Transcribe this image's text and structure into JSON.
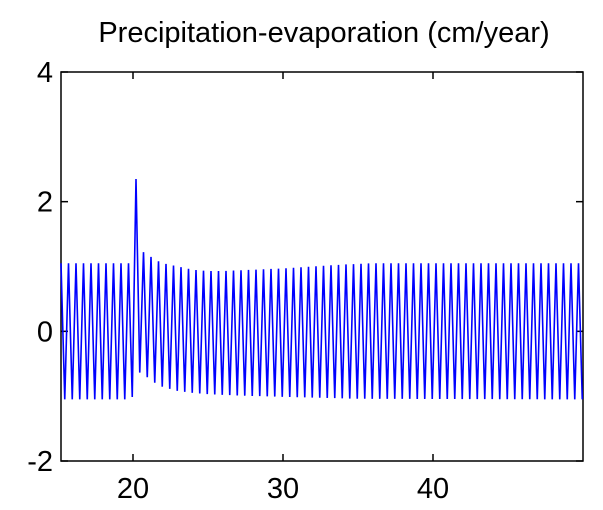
{
  "chart_data": {
    "type": "line",
    "title": "Precipitation-evaporation (cm/year)",
    "xlabel": "",
    "ylabel": "",
    "xlim": [
      15.2,
      50
    ],
    "ylim": [
      -2,
      4
    ],
    "x_ticks": [
      20,
      30,
      40
    ],
    "y_ticks": [
      -2,
      0,
      2,
      4
    ],
    "x_tick_labels": [
      "20",
      "30",
      "40"
    ],
    "y_tick_labels": [
      "-2",
      "0",
      "2",
      "4"
    ],
    "grid": false,
    "series": [
      {
        "oscillation_period_years": 0.5,
        "spike": {
          "x": 20.0,
          "y": 2.35
        },
        "envelope_upper": [
          [
            15.2,
            1.05
          ],
          [
            19.9,
            1.05
          ],
          [
            20.5,
            1.25
          ],
          [
            21.0,
            1.18
          ],
          [
            21.5,
            1.1
          ],
          [
            22.0,
            1.05
          ],
          [
            23.0,
            1.0
          ],
          [
            24.0,
            0.95
          ],
          [
            25.0,
            0.93
          ],
          [
            26.0,
            0.93
          ],
          [
            27.0,
            0.94
          ],
          [
            28.0,
            0.95
          ],
          [
            29.0,
            0.96
          ],
          [
            30.0,
            0.97
          ],
          [
            32.0,
            1.0
          ],
          [
            34.0,
            1.03
          ],
          [
            36.0,
            1.05
          ],
          [
            50.0,
            1.05
          ]
        ],
        "envelope_lower": [
          [
            15.2,
            -1.05
          ],
          [
            19.9,
            -1.05
          ],
          [
            20.5,
            -0.6
          ],
          [
            21.0,
            -0.72
          ],
          [
            21.5,
            -0.8
          ],
          [
            22.0,
            -0.86
          ],
          [
            23.0,
            -0.92
          ],
          [
            24.0,
            -0.95
          ],
          [
            25.0,
            -0.97
          ],
          [
            27.0,
            -0.99
          ],
          [
            30.0,
            -1.01
          ],
          [
            35.0,
            -1.04
          ],
          [
            50.0,
            -1.05
          ]
        ]
      }
    ]
  },
  "colors": {
    "series": "#0000ff",
    "axes": "#000000",
    "background": "#ffffff"
  }
}
